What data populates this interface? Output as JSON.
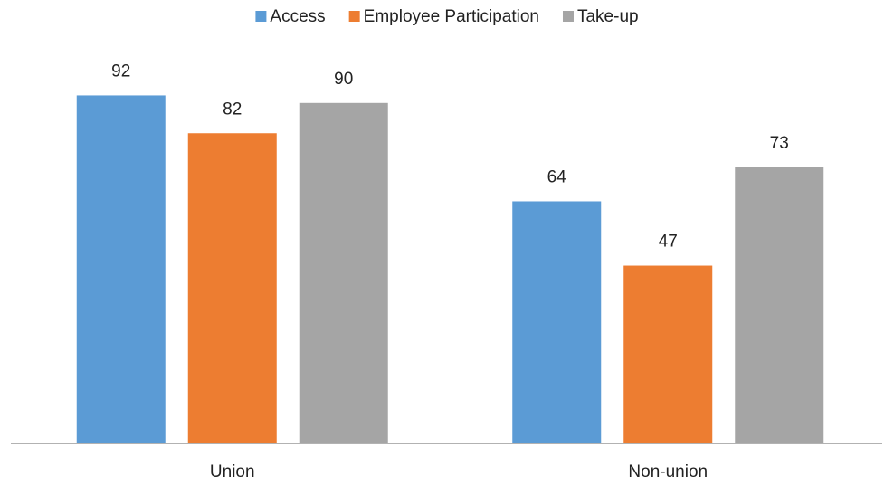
{
  "chart_data": {
    "type": "bar",
    "categories": [
      "Union",
      "Non-union"
    ],
    "series": [
      {
        "name": "Access",
        "color": "#5b9bd5",
        "values": [
          92,
          64
        ]
      },
      {
        "name": "Employee Participation",
        "color": "#ed7d31",
        "values": [
          82,
          47
        ]
      },
      {
        "name": "Take-up",
        "color": "#a5a5a5",
        "values": [
          90,
          73
        ]
      }
    ],
    "ylim": [
      0,
      100
    ],
    "legend": "top",
    "grid": false
  }
}
